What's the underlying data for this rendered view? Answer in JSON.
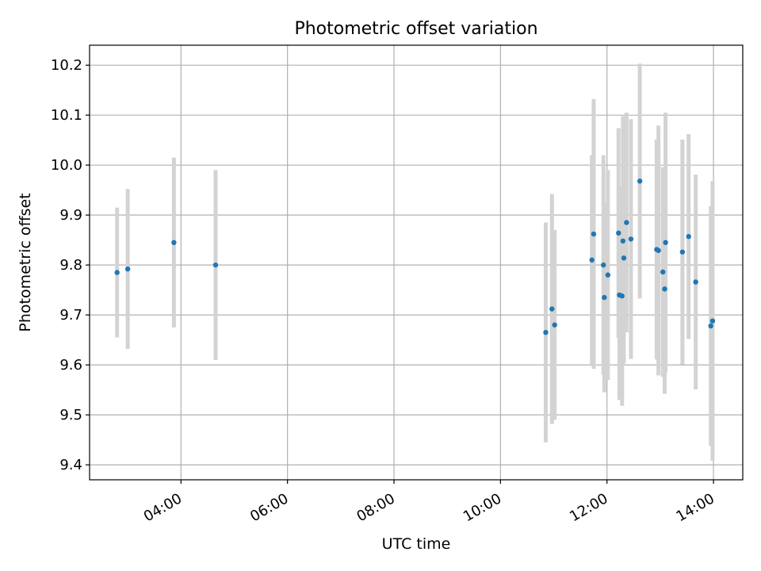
{
  "chart_data": {
    "type": "scatter",
    "title": "Photometric offset variation",
    "xlabel": "UTC time",
    "ylabel": "Photometric offset",
    "xlim": [
      "02:17",
      "14:33"
    ],
    "ylim": [
      9.37,
      10.24
    ],
    "x_ticks": [
      "04:00",
      "06:00",
      "08:00",
      "10:00",
      "12:00",
      "14:00"
    ],
    "y_ticks": [
      9.4,
      9.5,
      9.6,
      9.7,
      9.8,
      9.9,
      10.0,
      10.1,
      10.2
    ],
    "grid": true,
    "colors": {
      "points": "#1f77b4",
      "errorbars": "#d3d3d3",
      "grid": "#b0b0b0"
    },
    "points": [
      {
        "x": "02:48",
        "y": 9.785,
        "err": 0.13
      },
      {
        "x": "03:00",
        "y": 9.792,
        "err": 0.16
      },
      {
        "x": "03:52",
        "y": 9.845,
        "err": 0.17
      },
      {
        "x": "04:39",
        "y": 9.8,
        "err": 0.19
      },
      {
        "x": "10:51",
        "y": 9.665,
        "err": 0.22
      },
      {
        "x": "10:58",
        "y": 9.712,
        "err": 0.23
      },
      {
        "x": "11:01",
        "y": 9.68,
        "err": 0.19
      },
      {
        "x": "11:43",
        "y": 9.81,
        "err": 0.21
      },
      {
        "x": "11:45",
        "y": 9.862,
        "err": 0.27
      },
      {
        "x": "11:56",
        "y": 9.8,
        "err": 0.22
      },
      {
        "x": "11:57",
        "y": 9.735,
        "err": 0.19
      },
      {
        "x": "12:01",
        "y": 9.78,
        "err": 0.21
      },
      {
        "x": "12:13",
        "y": 9.864,
        "err": 0.21
      },
      {
        "x": "12:14",
        "y": 9.74,
        "err": 0.21
      },
      {
        "x": "12:17",
        "y": 9.738,
        "err": 0.22
      },
      {
        "x": "12:18",
        "y": 9.848,
        "err": 0.25
      },
      {
        "x": "12:19",
        "y": 9.814,
        "err": 0.21
      },
      {
        "x": "12:22",
        "y": 9.885,
        "err": 0.22
      },
      {
        "x": "12:27",
        "y": 9.852,
        "err": 0.24
      },
      {
        "x": "12:37",
        "y": 9.968,
        "err": 0.235
      },
      {
        "x": "12:56",
        "y": 9.831,
        "err": 0.22
      },
      {
        "x": "12:58",
        "y": 9.829,
        "err": 0.25
      },
      {
        "x": "13:03",
        "y": 9.786,
        "err": 0.21
      },
      {
        "x": "13:05",
        "y": 9.752,
        "err": 0.21
      },
      {
        "x": "13:06",
        "y": 9.845,
        "err": 0.26
      },
      {
        "x": "13:25",
        "y": 9.826,
        "err": 0.225
      },
      {
        "x": "13:32",
        "y": 9.857,
        "err": 0.205
      },
      {
        "x": "13:40",
        "y": 9.766,
        "err": 0.215
      },
      {
        "x": "13:57",
        "y": 9.678,
        "err": 0.24
      },
      {
        "x": "13:59",
        "y": 9.688,
        "err": 0.28
      }
    ]
  }
}
